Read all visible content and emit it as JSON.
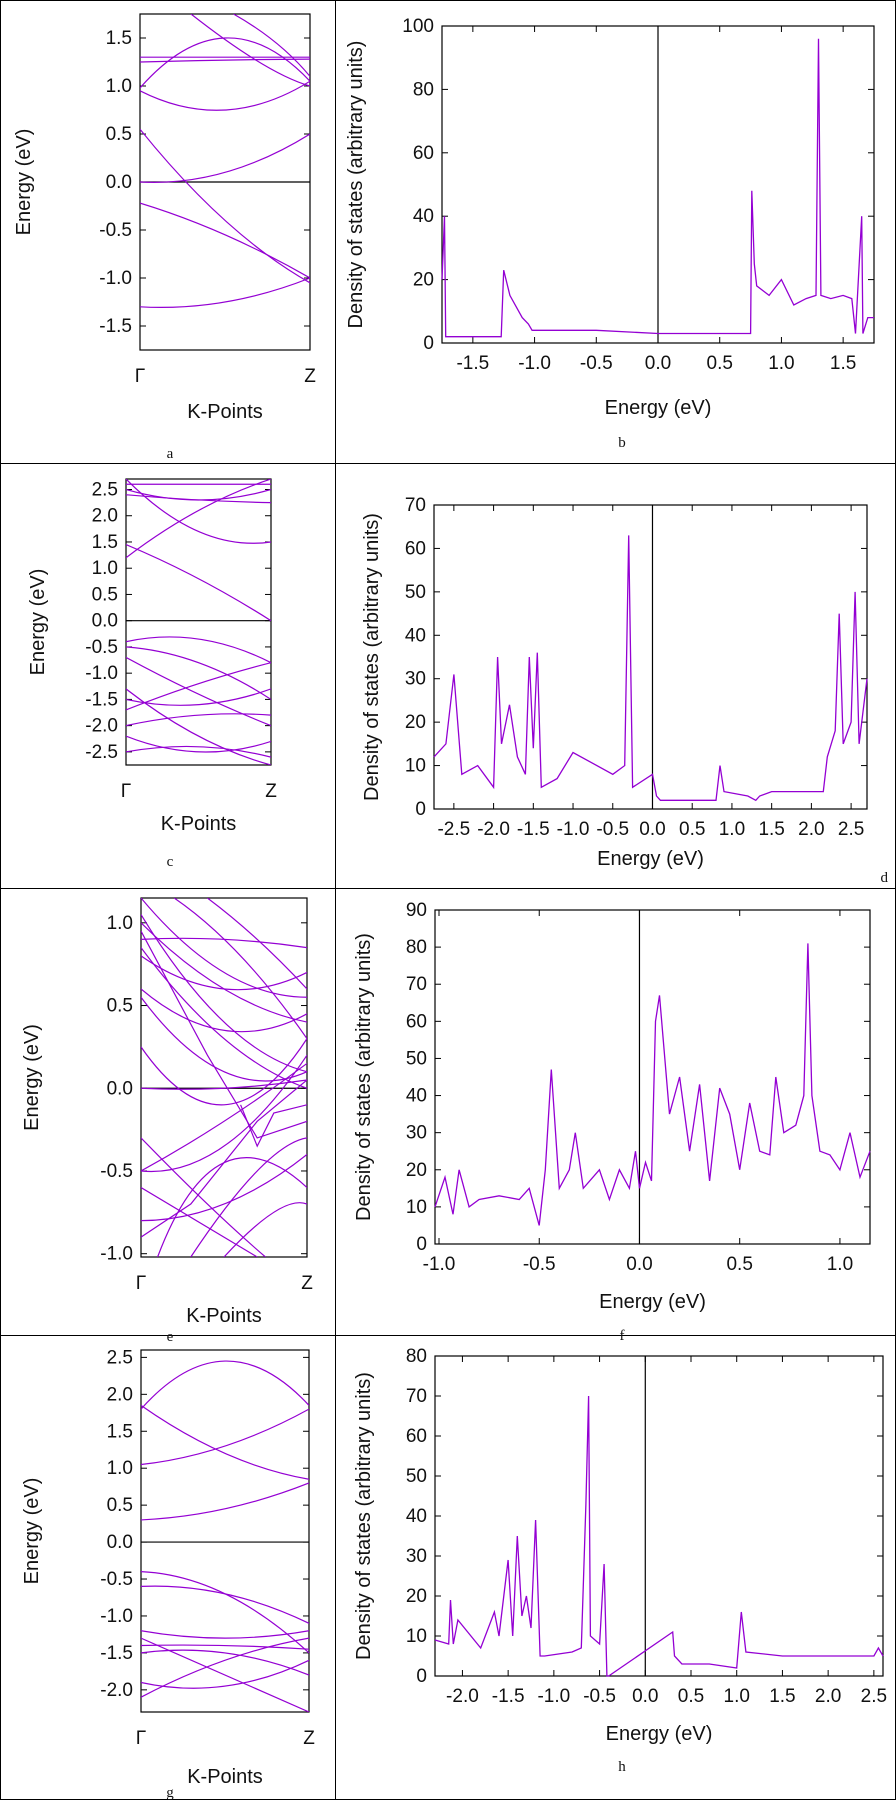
{
  "chart_data": [
    {
      "id": "a",
      "type": "line",
      "caption": "a",
      "xlabel": "K-Points",
      "ylabel": "Energy (eV)",
      "x_ticks": [
        "Γ",
        "Z"
      ],
      "y_ticks": [
        -1.5,
        -1.0,
        -0.5,
        0.0,
        0.5,
        1.0,
        1.5
      ],
      "ylim": [
        -1.75,
        1.75
      ],
      "bands": [
        [
          [
            0,
            0.0
          ],
          [
            0.5,
            0.1
          ],
          [
            1,
            0.5
          ]
        ],
        [
          [
            0,
            -0.22
          ],
          [
            0.5,
            -0.55
          ],
          [
            1,
            -1.0
          ]
        ],
        [
          [
            0,
            0.55
          ],
          [
            0.5,
            -0.4
          ],
          [
            1,
            -1.05
          ]
        ],
        [
          [
            0,
            -1.3
          ],
          [
            0.5,
            -1.25
          ],
          [
            1,
            -1.0
          ]
        ],
        [
          [
            0,
            0.95
          ],
          [
            0.5,
            0.75
          ],
          [
            1,
            1.05
          ]
        ],
        [
          [
            0,
            0.98
          ],
          [
            0.5,
            1.5
          ],
          [
            1,
            1.05
          ]
        ],
        [
          [
            0,
            1.3
          ],
          [
            0.5,
            1.3
          ],
          [
            1,
            1.3
          ]
        ],
        [
          [
            0,
            1.25
          ],
          [
            0.5,
            1.27
          ],
          [
            1,
            1.28
          ]
        ],
        [
          [
            0.55,
            1.75
          ],
          [
            0.8,
            1.45
          ],
          [
            1,
            1.1
          ]
        ],
        [
          [
            0.3,
            1.75
          ],
          [
            0.7,
            1.25
          ],
          [
            1,
            1.0
          ]
        ]
      ]
    },
    {
      "id": "b",
      "type": "line",
      "caption": "b",
      "xlabel": "Energy (eV)",
      "ylabel": "Density of states (arbitrary units)",
      "x_ticks": [
        -1.5,
        -1.0,
        -0.5,
        0.0,
        0.5,
        1.0,
        1.5
      ],
      "y_ticks": [
        0,
        20,
        40,
        60,
        80,
        100
      ],
      "xlim": [
        -1.75,
        1.75
      ],
      "ylim": [
        0,
        100
      ],
      "x": [
        -1.75,
        -1.73,
        -1.72,
        -1.7,
        -1.27,
        -1.25,
        -1.2,
        -1.1,
        -1.05,
        -1.02,
        -0.9,
        -0.5,
        0,
        0.5,
        0.75,
        0.76,
        0.78,
        0.8,
        0.9,
        1.0,
        1.1,
        1.2,
        1.28,
        1.3,
        1.32,
        1.4,
        1.5,
        1.57,
        1.6,
        1.65,
        1.66,
        1.7,
        1.75
      ],
      "values": [
        20,
        40,
        2,
        2,
        2,
        23,
        15,
        8,
        6,
        4,
        4,
        4,
        3,
        3,
        3,
        48,
        25,
        18,
        15,
        20,
        12,
        14,
        15,
        96,
        15,
        14,
        15,
        14,
        3,
        40,
        3,
        8,
        8
      ]
    },
    {
      "id": "c",
      "type": "line",
      "caption": "c",
      "xlabel": "K-Points",
      "ylabel": "Energy (eV)",
      "x_ticks": [
        "Γ",
        "Z"
      ],
      "y_ticks": [
        -2.5,
        -2.0,
        -1.5,
        -1.0,
        -0.5,
        0.0,
        0.5,
        1.0,
        1.5,
        2.0,
        2.5
      ],
      "ylim": [
        -2.75,
        2.7
      ],
      "bands": [
        [
          [
            0,
            1.45
          ],
          [
            0.5,
            0.8
          ],
          [
            1,
            0.0
          ]
        ],
        [
          [
            0,
            1.2
          ],
          [
            0.5,
            2.1
          ],
          [
            1,
            2.7
          ]
        ],
        [
          [
            0,
            2.7
          ],
          [
            0.5,
            1.7
          ],
          [
            1,
            1.5
          ]
        ],
        [
          [
            0,
            2.5
          ],
          [
            0.5,
            2.3
          ],
          [
            1,
            2.5
          ]
        ],
        [
          [
            0,
            2.4
          ],
          [
            0.5,
            2.3
          ],
          [
            1,
            2.25
          ]
        ],
        [
          [
            0,
            2.6
          ],
          [
            0.5,
            2.6
          ],
          [
            1,
            2.6
          ]
        ],
        [
          [
            0,
            -0.4
          ],
          [
            0.5,
            -0.35
          ],
          [
            1,
            -0.8
          ]
        ],
        [
          [
            0,
            -0.5
          ],
          [
            0.5,
            -0.8
          ],
          [
            1,
            -1.5
          ]
        ],
        [
          [
            0,
            -0.7
          ],
          [
            0.5,
            -1.4
          ],
          [
            1,
            -2.0
          ]
        ],
        [
          [
            0,
            -1.5
          ],
          [
            0.5,
            -1.6
          ],
          [
            1,
            -1.3
          ]
        ],
        [
          [
            0,
            -1.7
          ],
          [
            0.5,
            -1.2
          ],
          [
            1,
            -0.8
          ]
        ],
        [
          [
            0,
            -2.0
          ],
          [
            0.5,
            -1.8
          ],
          [
            1,
            -1.8
          ]
        ],
        [
          [
            0,
            -2.2
          ],
          [
            0.5,
            -2.5
          ],
          [
            1,
            -2.3
          ]
        ],
        [
          [
            0,
            -2.5
          ],
          [
            0.5,
            -2.4
          ],
          [
            1,
            -2.6
          ]
        ],
        [
          [
            0,
            -1.3
          ],
          [
            0.5,
            -2.2
          ],
          [
            1,
            -2.75
          ]
        ]
      ]
    },
    {
      "id": "d",
      "type": "line",
      "caption": "d",
      "xlabel": "Energy (eV)",
      "ylabel": "Density of states (arbitrary units)",
      "x_ticks": [
        -2.5,
        -2.0,
        -1.5,
        -1.0,
        -0.5,
        0.0,
        0.5,
        1.0,
        1.5,
        2.0,
        2.5
      ],
      "y_ticks": [
        0,
        10,
        20,
        30,
        40,
        50,
        60,
        70
      ],
      "xlim": [
        -2.75,
        2.7
      ],
      "ylim": [
        0,
        70
      ],
      "x": [
        -2.75,
        -2.6,
        -2.5,
        -2.4,
        -2.2,
        -2.0,
        -1.95,
        -1.9,
        -1.8,
        -1.7,
        -1.6,
        -1.55,
        -1.5,
        -1.45,
        -1.4,
        -1.2,
        -1.0,
        -0.5,
        -0.35,
        -0.3,
        -0.25,
        0,
        0.05,
        0.1,
        0.5,
        0.8,
        0.85,
        0.9,
        1.2,
        1.3,
        1.35,
        1.5,
        2.0,
        2.15,
        2.2,
        2.3,
        2.35,
        2.4,
        2.5,
        2.55,
        2.6,
        2.7
      ],
      "values": [
        12,
        15,
        31,
        8,
        10,
        5,
        35,
        15,
        24,
        12,
        8,
        35,
        14,
        36,
        5,
        7,
        13,
        8,
        10,
        63,
        5,
        8,
        3,
        2,
        2,
        2,
        10,
        4,
        3,
        2,
        3,
        4,
        4,
        4,
        12,
        18,
        45,
        15,
        20,
        50,
        15,
        30
      ]
    },
    {
      "id": "e",
      "type": "line",
      "caption": "e",
      "xlabel": "K-Points",
      "ylabel": "Energy (eV)",
      "x_ticks": [
        "Γ",
        "Z"
      ],
      "y_ticks": [
        -1.0,
        -0.5,
        0.0,
        0.5,
        1.0
      ],
      "ylim": [
        -1.02,
        1.15
      ],
      "bands": [
        [
          [
            0,
            -0.5
          ],
          [
            0.5,
            -0.35
          ],
          [
            1,
            0.2
          ]
        ],
        [
          [
            0,
            -0.5
          ],
          [
            0.5,
            -0.2
          ],
          [
            1,
            0.15
          ]
        ],
        [
          [
            0,
            0.0
          ],
          [
            0.5,
            0.0
          ],
          [
            1,
            0.05
          ]
        ],
        [
          [
            0,
            0.25
          ],
          [
            0.5,
            -0.1
          ],
          [
            1,
            0.3
          ]
        ],
        [
          [
            0,
            0.55
          ],
          [
            0.5,
            0.1
          ],
          [
            1,
            0.1
          ]
        ],
        [
          [
            0,
            0.6
          ],
          [
            0.5,
            0.35
          ],
          [
            1,
            0.45
          ]
        ],
        [
          [
            0,
            0.8
          ],
          [
            0.5,
            0.6
          ],
          [
            1,
            0.7
          ]
        ],
        [
          [
            0,
            0.9
          ],
          [
            0.5,
            0.9
          ],
          [
            1,
            0.85
          ]
        ],
        [
          [
            0,
            1.0
          ],
          [
            0.5,
            0.6
          ],
          [
            1,
            0.4
          ]
        ],
        [
          [
            0,
            1.15
          ],
          [
            0.5,
            0.7
          ],
          [
            1,
            0.55
          ]
        ],
        [
          [
            0,
            0.85
          ],
          [
            0.5,
            0.3
          ],
          [
            1,
            0.0
          ]
        ],
        [
          [
            0,
            1.05
          ],
          [
            0.5,
            0.4
          ],
          [
            1,
            0.1
          ]
        ],
        [
          [
            0.2,
            1.15
          ],
          [
            0.6,
            0.8
          ],
          [
            1,
            0.3
          ]
        ],
        [
          [
            0.4,
            1.15
          ],
          [
            0.7,
            0.9
          ],
          [
            1,
            0.6
          ]
        ],
        [
          [
            0,
            0.95
          ],
          [
            0.4,
            0.2
          ],
          [
            0.7,
            -0.3
          ],
          [
            1,
            -0.2
          ]
        ],
        [
          [
            0,
            -0.8
          ],
          [
            0.5,
            -0.7
          ],
          [
            1,
            -0.4
          ]
        ],
        [
          [
            0,
            -0.9
          ],
          [
            0.3,
            -0.7
          ],
          [
            0.7,
            -0.2
          ],
          [
            1,
            0.05
          ]
        ],
        [
          [
            0.1,
            -1.02
          ],
          [
            0.5,
            -0.45
          ],
          [
            1,
            -0.6
          ]
        ],
        [
          [
            0.3,
            -1.02
          ],
          [
            0.7,
            -0.5
          ],
          [
            1,
            -0.3
          ]
        ],
        [
          [
            0.5,
            -1.02
          ],
          [
            0.8,
            -0.75
          ],
          [
            1,
            -0.7
          ]
        ],
        [
          [
            0,
            -0.6
          ],
          [
            0.5,
            -0.9
          ],
          [
            0.7,
            -1.02
          ]
        ],
        [
          [
            0,
            -0.3
          ],
          [
            0.4,
            -0.7
          ],
          [
            0.75,
            -1.02
          ]
        ],
        [
          [
            0.6,
            -0.1
          ],
          [
            0.7,
            -0.35
          ],
          [
            0.8,
            -0.15
          ],
          [
            1,
            -0.1
          ]
        ]
      ]
    },
    {
      "id": "f",
      "type": "line",
      "caption": "f",
      "xlabel": "Energy (eV)",
      "ylabel": "Density of states (arbitrary units)",
      "x_ticks": [
        -1.0,
        -0.5,
        0.0,
        0.5,
        1.0
      ],
      "y_ticks": [
        0,
        10,
        20,
        30,
        40,
        50,
        60,
        70,
        80,
        90
      ],
      "xlim": [
        -1.02,
        1.15
      ],
      "ylim": [
        0,
        90
      ],
      "x": [
        -1.02,
        -0.97,
        -0.93,
        -0.9,
        -0.85,
        -0.8,
        -0.7,
        -0.6,
        -0.55,
        -0.5,
        -0.47,
        -0.44,
        -0.4,
        -0.35,
        -0.32,
        -0.28,
        -0.2,
        -0.15,
        -0.1,
        -0.05,
        -0.02,
        0.0,
        0.03,
        0.06,
        0.08,
        0.1,
        0.15,
        0.2,
        0.25,
        0.3,
        0.35,
        0.4,
        0.45,
        0.5,
        0.55,
        0.6,
        0.65,
        0.68,
        0.72,
        0.78,
        0.82,
        0.84,
        0.86,
        0.9,
        0.95,
        1.0,
        1.05,
        1.1,
        1.15
      ],
      "values": [
        10,
        18,
        8,
        20,
        10,
        12,
        13,
        12,
        15,
        5,
        20,
        47,
        15,
        20,
        30,
        15,
        20,
        12,
        20,
        15,
        25,
        15,
        22,
        17,
        60,
        67,
        35,
        45,
        25,
        43,
        17,
        42,
        35,
        20,
        38,
        25,
        24,
        45,
        30,
        32,
        40,
        81,
        40,
        25,
        24,
        20,
        30,
        18,
        25
      ]
    },
    {
      "id": "g",
      "type": "line",
      "caption": "g",
      "xlabel": "K-Points",
      "ylabel": "Energy (eV)",
      "x_ticks": [
        "Γ",
        "Z"
      ],
      "y_ticks": [
        -2.0,
        -1.5,
        -1.0,
        -0.5,
        0.0,
        0.5,
        1.0,
        1.5,
        2.0,
        2.5
      ],
      "ylim": [
        -2.3,
        2.6
      ],
      "bands": [
        [
          [
            0,
            0.3
          ],
          [
            0.5,
            0.45
          ],
          [
            1,
            0.8
          ]
        ],
        [
          [
            0,
            1.05
          ],
          [
            0.5,
            1.3
          ],
          [
            1,
            1.8
          ]
        ],
        [
          [
            0,
            1.85
          ],
          [
            0.5,
            1.2
          ],
          [
            1,
            0.85
          ]
        ],
        [
          [
            0,
            1.8
          ],
          [
            0.5,
            2.45
          ],
          [
            1,
            1.85
          ]
        ],
        [
          [
            0,
            -0.4
          ],
          [
            0.5,
            -0.7
          ],
          [
            1,
            -1.5
          ]
        ],
        [
          [
            0,
            -0.6
          ],
          [
            0.5,
            -0.7
          ],
          [
            1,
            -1.1
          ]
        ],
        [
          [
            0,
            -1.2
          ],
          [
            0.5,
            -1.3
          ],
          [
            1,
            -1.2
          ]
        ],
        [
          [
            0,
            -1.3
          ],
          [
            0.5,
            -1.8
          ],
          [
            1,
            -2.3
          ]
        ],
        [
          [
            0,
            -1.5
          ],
          [
            0.5,
            -1.5
          ],
          [
            1,
            -1.8
          ]
        ],
        [
          [
            0,
            -2.1
          ],
          [
            0.5,
            -1.6
          ],
          [
            1,
            -1.3
          ]
        ],
        [
          [
            0,
            -1.9
          ],
          [
            0.5,
            -1.95
          ],
          [
            1,
            -1.6
          ]
        ],
        [
          [
            0,
            -1.4
          ],
          [
            0.5,
            -1.4
          ],
          [
            1,
            -1.45
          ]
        ]
      ]
    },
    {
      "id": "h",
      "type": "line",
      "caption": "h",
      "xlabel": "Energy (eV)",
      "ylabel": "Density of states (arbitrary units)",
      "x_ticks": [
        -2.0,
        -1.5,
        -1.0,
        -0.5,
        0.0,
        0.5,
        1.0,
        1.5,
        2.0,
        2.5
      ],
      "y_ticks": [
        0,
        10,
        20,
        30,
        40,
        50,
        60,
        70,
        80
      ],
      "xlim": [
        -2.3,
        2.6
      ],
      "ylim": [
        0,
        80
      ],
      "x": [
        -2.3,
        -2.15,
        -2.13,
        -2.1,
        -2.05,
        -1.8,
        -1.65,
        -1.6,
        -1.5,
        -1.45,
        -1.4,
        -1.35,
        -1.3,
        -1.25,
        -1.2,
        -1.15,
        -1.1,
        -0.8,
        -0.7,
        -0.65,
        -0.62,
        -0.6,
        -0.5,
        -0.45,
        -0.42,
        -0.4,
        0.3,
        0.32,
        0.4,
        0.7,
        1.0,
        1.05,
        1.1,
        1.5,
        2.0,
        2.5,
        2.55,
        2.6
      ],
      "values": [
        9,
        8,
        19,
        8,
        14,
        7,
        16,
        10,
        29,
        10,
        35,
        15,
        20,
        12,
        39,
        5,
        5,
        6,
        7,
        43,
        70,
        10,
        8,
        28,
        0,
        0,
        11,
        5,
        3,
        3,
        2,
        16,
        6,
        5,
        5,
        5,
        7,
        5
      ]
    }
  ]
}
